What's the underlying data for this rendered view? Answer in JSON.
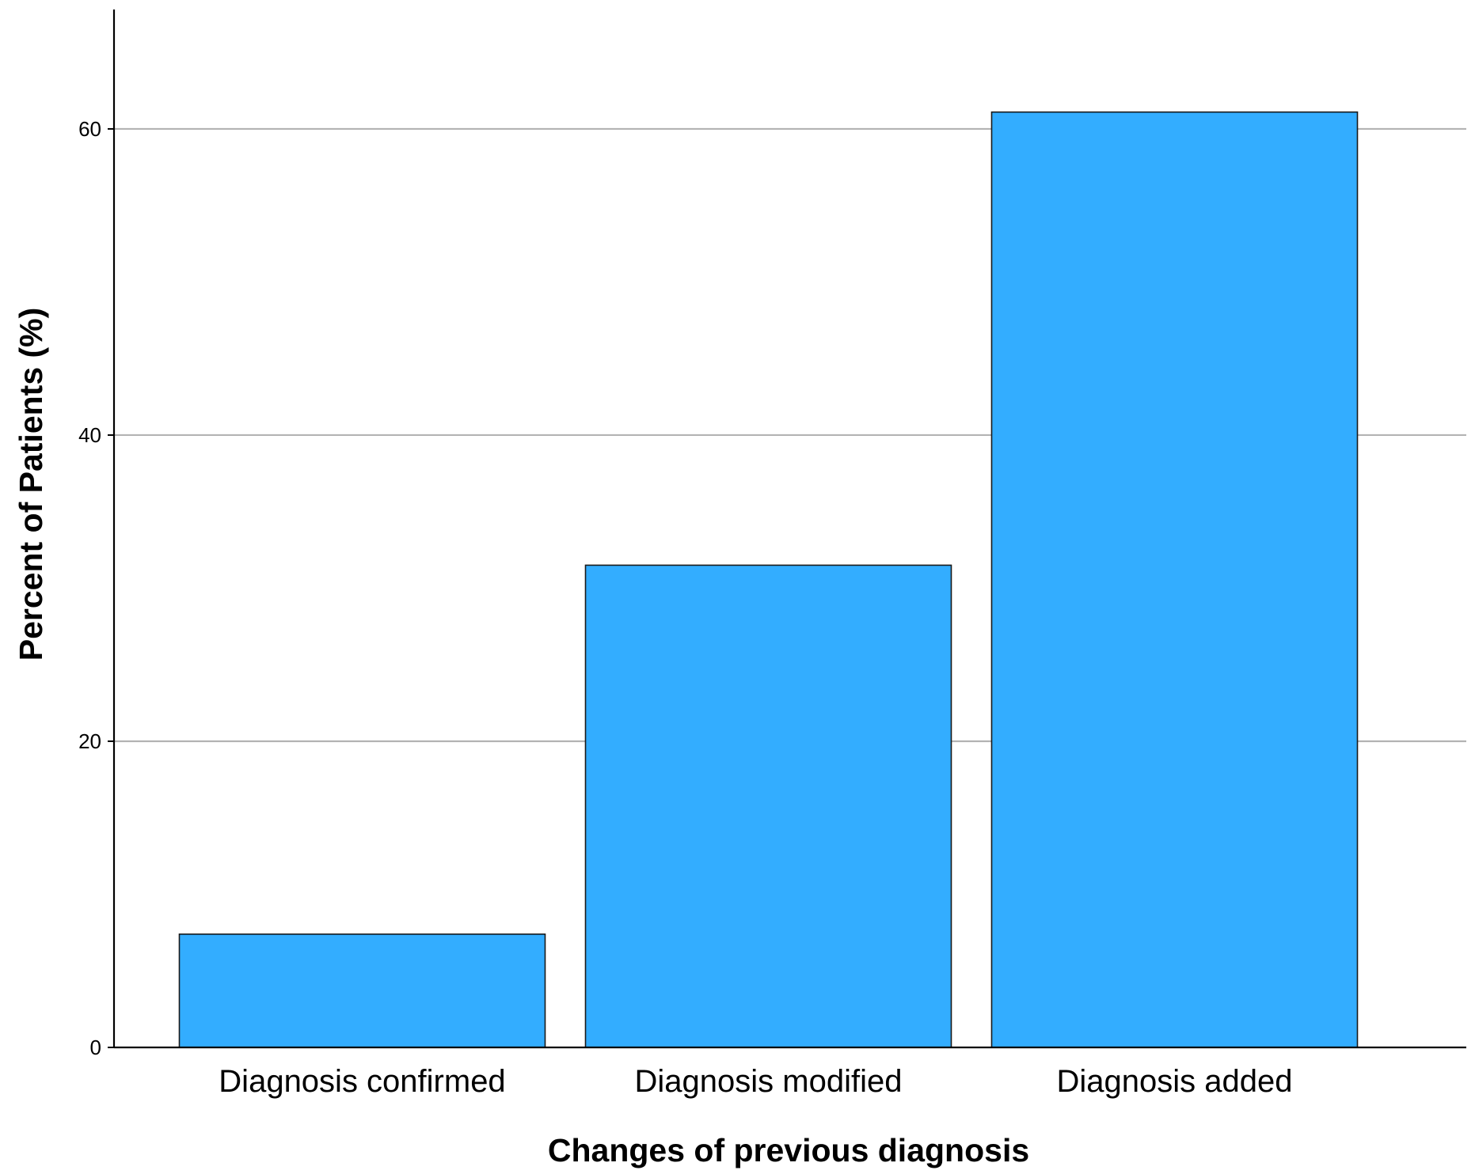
{
  "chart_data": {
    "type": "bar",
    "title": "",
    "xlabel": "Changes of previous diagnosis",
    "ylabel": "Percent of Patients (%)",
    "categories": [
      "Diagnosis confirmed",
      "Diagnosis modified",
      "Diagnosis added"
    ],
    "values": [
      7.4,
      31.5,
      61.1
    ],
    "ylim": [
      0,
      67.8
    ],
    "yticks": [
      0,
      20,
      40,
      60
    ],
    "grid": "horizontal",
    "legend": "none",
    "colors": {
      "bar_fill": "#33adff",
      "bar_stroke": "#1a1a1a",
      "grid": "#b3b3b3",
      "axis": "#000000"
    }
  }
}
